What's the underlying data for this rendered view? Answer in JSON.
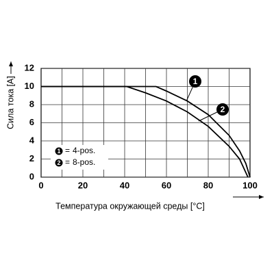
{
  "chart_data": {
    "type": "line",
    "x_label": "Температура окружающей среды [°C]",
    "y_label": "Сила тока [A]",
    "xlim": [
      0,
      100
    ],
    "xticks": [
      0,
      20,
      40,
      60,
      80,
      100
    ],
    "xgrid": [
      10,
      20,
      30,
      40,
      50,
      60,
      70,
      80,
      90
    ],
    "ylim": [
      0,
      12
    ],
    "yticks": [
      0,
      2,
      4,
      6,
      8,
      10,
      12
    ],
    "grid": true,
    "legend_equals": "=",
    "series": [
      {
        "name": "4-pos.",
        "marker": "1",
        "color": "#000000",
        "x": [
          0,
          55,
          60,
          70,
          80,
          90,
          95,
          98,
          100
        ],
        "values": [
          10,
          10,
          9.5,
          8.4,
          6.9,
          4.6,
          2.9,
          1.5,
          0
        ]
      },
      {
        "name": "8-pos.",
        "marker": "2",
        "color": "#000000",
        "x": [
          0,
          41,
          50,
          60,
          70,
          80,
          90,
          95,
          99
        ],
        "values": [
          10,
          10,
          9.3,
          8.4,
          7.2,
          5.6,
          3.4,
          2,
          0
        ]
      }
    ]
  }
}
